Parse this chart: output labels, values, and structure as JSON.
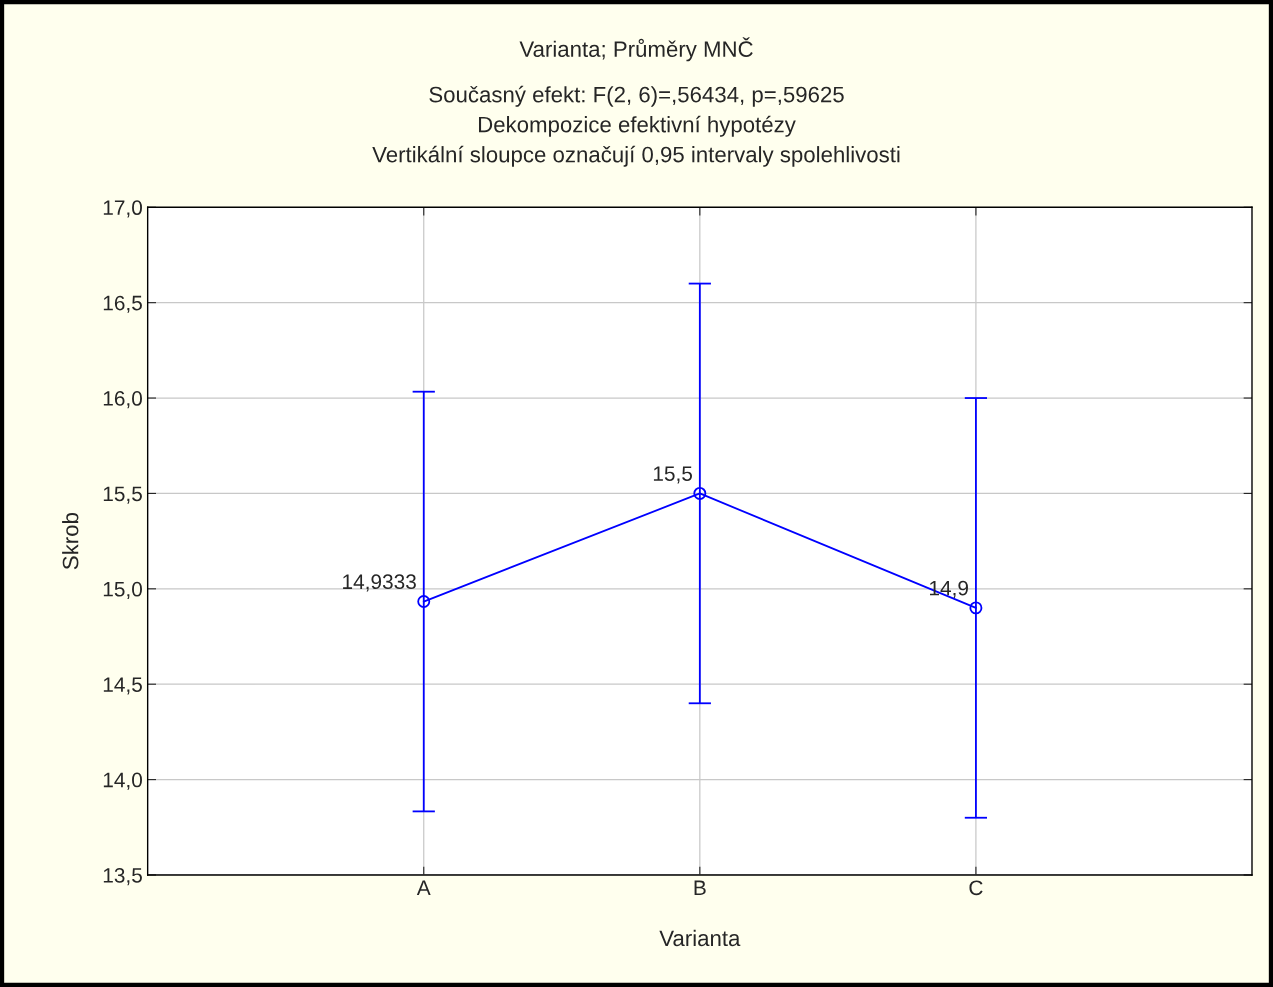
{
  "chart_data": {
    "type": "line",
    "title": "Varianta; Průměry MNČ",
    "subtitle": "Současný efekt: F(2, 6)=,56434, p=,59625\nDekompozice efektivní hypotézy\nVertikální sloupce označují 0,95 intervaly spolehlivosti",
    "xlabel": "Varianta",
    "ylabel": "Skrob",
    "categories": [
      "A",
      "B",
      "C"
    ],
    "series": [
      {
        "color": "#0000ff",
        "values": [
          14.9333,
          15.5,
          14.9
        ],
        "errors": [
          1.1,
          1.1,
          1.1
        ],
        "value_labels": [
          "14,9333",
          "15,5",
          "14,9"
        ]
      }
    ],
    "ylim": [
      13.5,
      17.0
    ],
    "yticks": [
      {
        "value": 13.5,
        "label": "13,5"
      },
      {
        "value": 14.0,
        "label": "14,0"
      },
      {
        "value": 14.5,
        "label": "14,5"
      },
      {
        "value": 15.0,
        "label": "15,0"
      },
      {
        "value": 15.5,
        "label": "15,5"
      },
      {
        "value": 16.0,
        "label": "16,0"
      },
      {
        "value": 16.5,
        "label": "16,5"
      },
      {
        "value": 17.0,
        "label": "17,0"
      }
    ],
    "grid": true,
    "marker": "circle",
    "line_style": "solid"
  }
}
